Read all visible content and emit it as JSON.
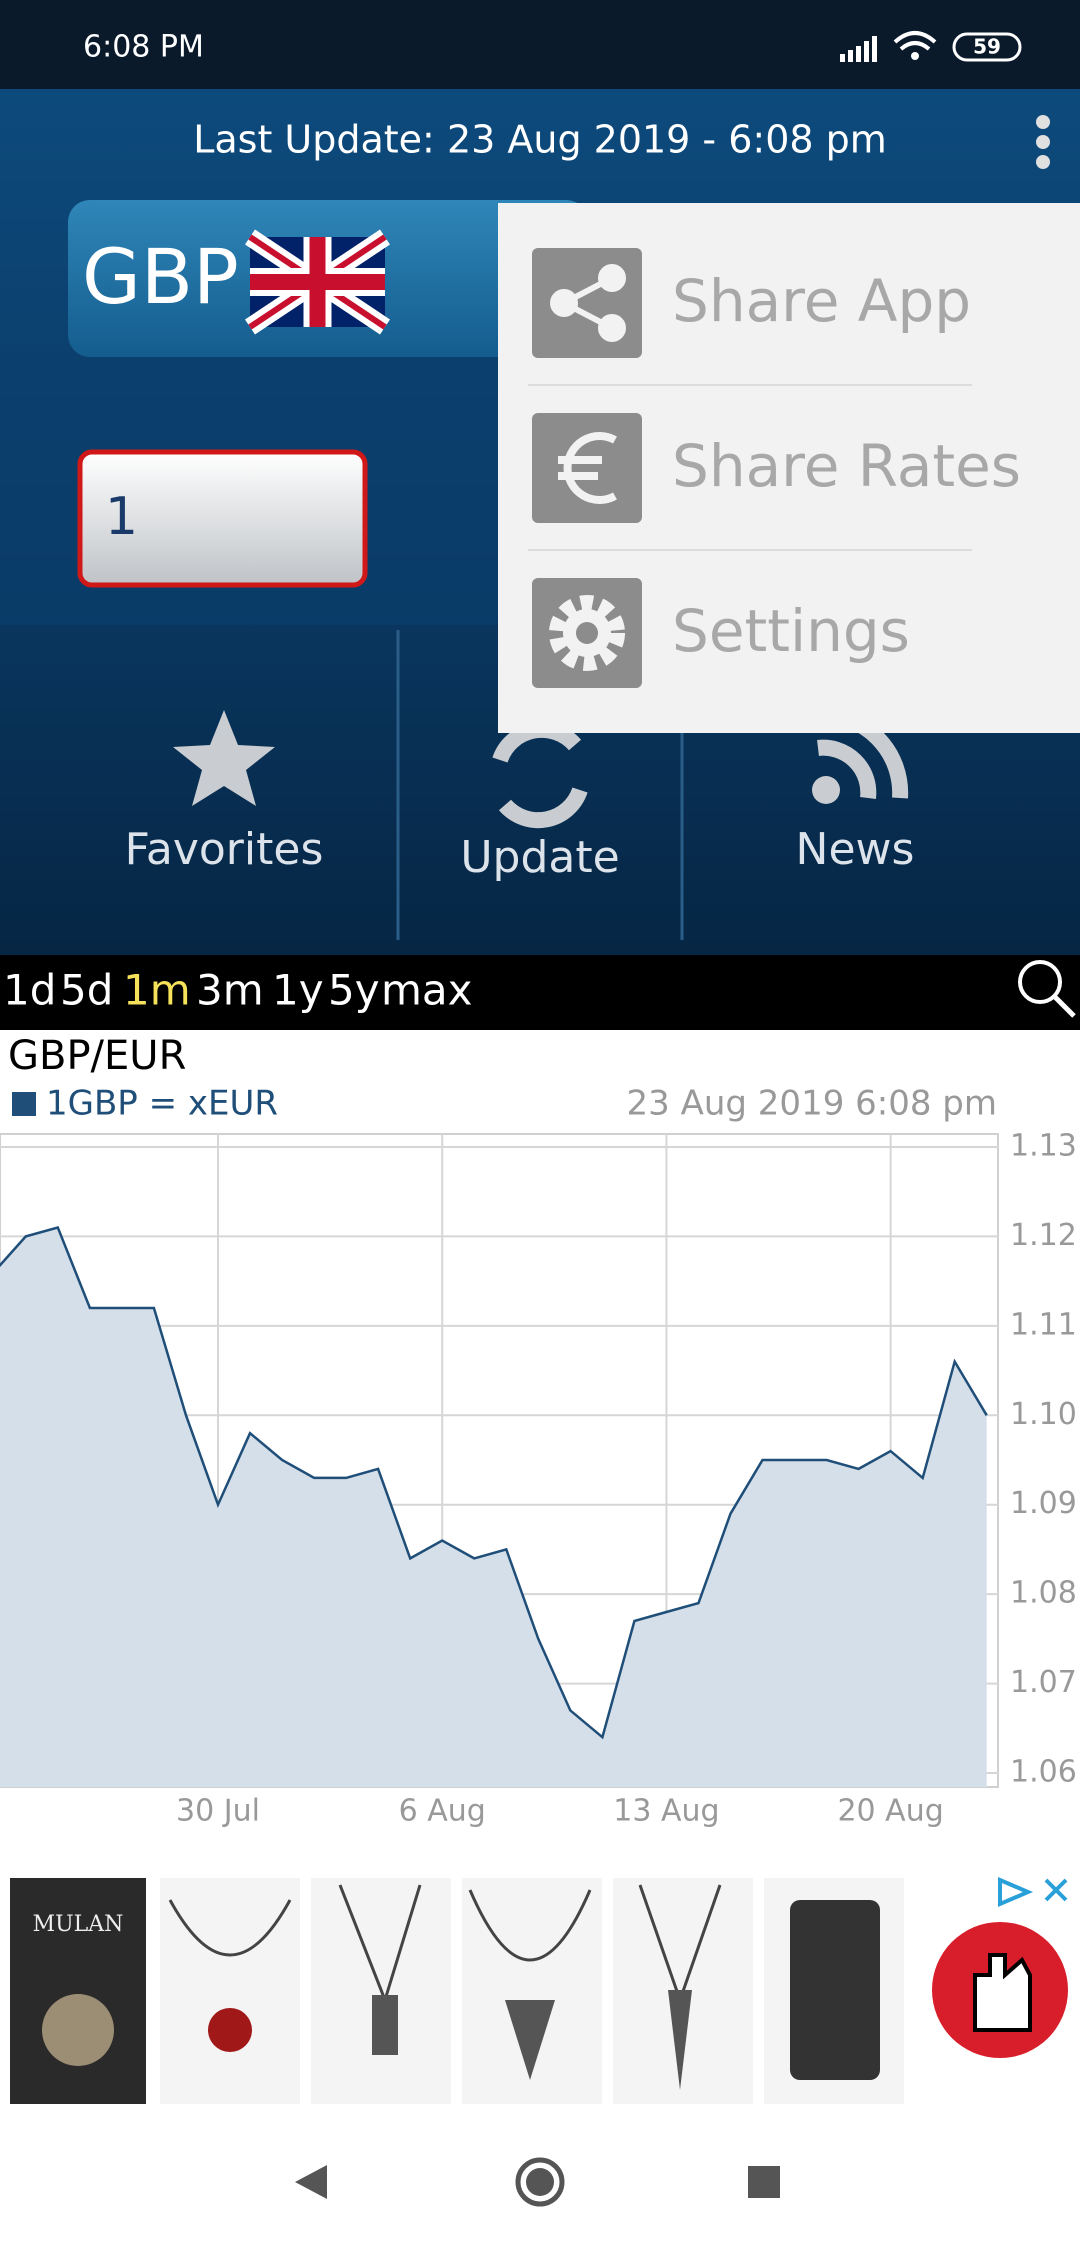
{
  "status_bar": {
    "time": "6:08 PM",
    "battery": "59"
  },
  "header": {
    "last_update": "Last Update: 23 Aug 2019 - 6:08 pm"
  },
  "converter": {
    "currency": "GBP",
    "amount": "1"
  },
  "buttons": [
    "Favorites",
    "Update",
    "News"
  ],
  "menu": [
    "Share App",
    "Share Rates",
    "Settings"
  ],
  "ranges": {
    "items": [
      "1d",
      "5d",
      "1m",
      "3m",
      "1y",
      "5y",
      "max"
    ],
    "selected": 2
  },
  "chart_data": {
    "type": "line",
    "title": "GBP/EUR",
    "subtitle": "23 Aug 2019 6:08 pm",
    "categories": [
      null,
      null,
      null,
      null,
      null,
      null,
      null,
      "30 Jul",
      null,
      null,
      null,
      null,
      null,
      null,
      "6 Aug",
      null,
      null,
      null,
      null,
      null,
      null,
      "13 Aug",
      null,
      null,
      null,
      null,
      null,
      null,
      "20 Aug",
      null,
      null,
      null
    ],
    "series": [
      {
        "name": "1GBP = xEUR",
        "color": "#1f4e79",
        "fill": "#d5dfe9",
        "values": [
          1.116,
          1.12,
          1.121,
          1.112,
          1.112,
          1.112,
          1.1,
          1.09,
          1.098,
          1.095,
          1.093,
          1.093,
          1.094,
          1.084,
          1.086,
          1.084,
          1.085,
          1.075,
          1.067,
          1.064,
          1.077,
          1.078,
          1.079,
          1.089,
          1.095,
          1.095,
          1.095,
          1.094,
          1.096,
          1.093,
          1.106,
          1.1
        ]
      }
    ],
    "ylim": [
      1.06,
      1.13
    ],
    "yticks": [
      1.06,
      1.07,
      1.08,
      1.09,
      {
        "value": 1.1,
        "label": "1.10"
      },
      1.11,
      1.12,
      1.13
    ],
    "grid": true,
    "y_axis_side": "right"
  },
  "ad": {
    "text": "MULAN"
  }
}
